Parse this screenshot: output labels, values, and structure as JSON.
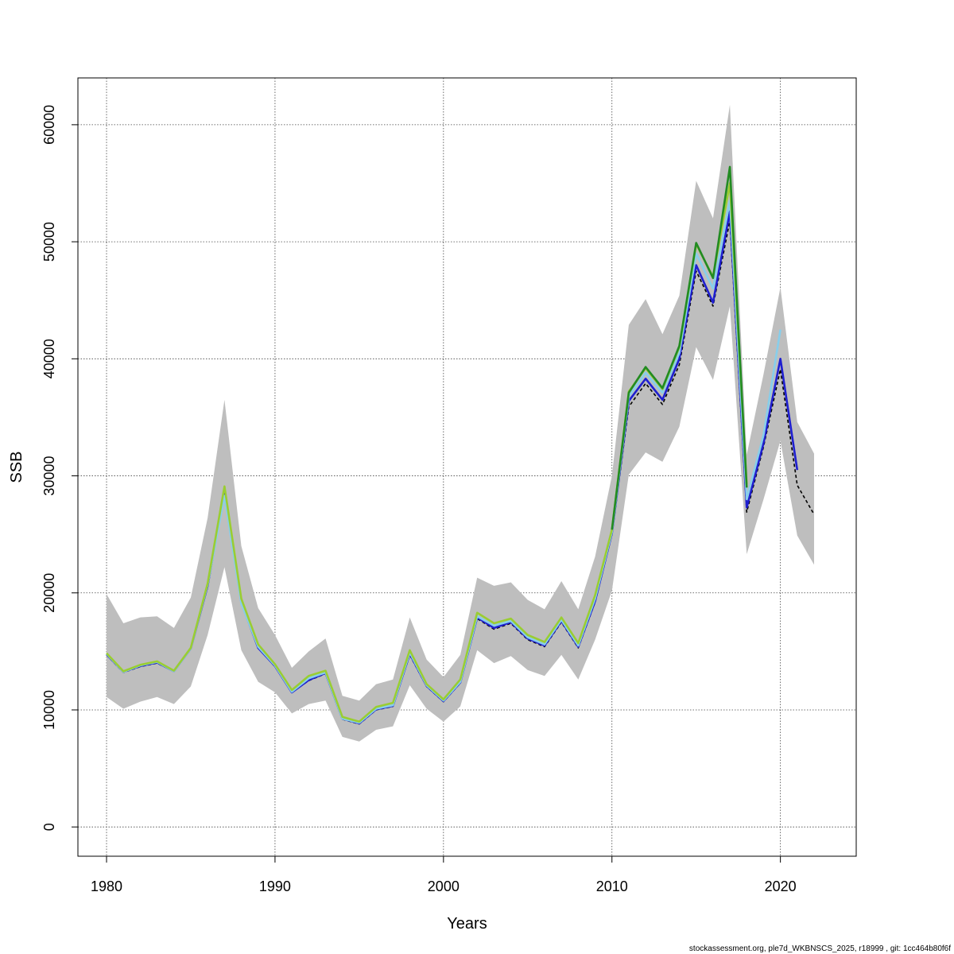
{
  "chart_data": {
    "type": "line",
    "title": "",
    "xlabel": "Years",
    "ylabel": "SSB",
    "xlim": [
      1978.3,
      2024.5
    ],
    "ylim": [
      -2500,
      64000
    ],
    "x_ticks": [
      1980,
      1990,
      2000,
      2010,
      2020
    ],
    "y_ticks": [
      0,
      10000,
      20000,
      30000,
      40000,
      50000,
      60000
    ],
    "x_tick_labels": [
      "1980",
      "1990",
      "2000",
      "2010",
      "2020"
    ],
    "y_tick_labels": [
      "0",
      "10000",
      "20000",
      "30000",
      "40000",
      "50000",
      "60000"
    ],
    "grid": true,
    "legend": "none",
    "confidence_band": {
      "color": "#bebebe",
      "x": [
        1980,
        1981,
        1982,
        1983,
        1984,
        1985,
        1986,
        1987,
        1988,
        1989,
        1990,
        1991,
        1992,
        1993,
        1994,
        1995,
        1996,
        1997,
        1998,
        1999,
        2000,
        2001,
        2002,
        2003,
        2004,
        2005,
        2006,
        2007,
        2008,
        2009,
        2010,
        2011,
        2012,
        2013,
        2014,
        2015,
        2016,
        2017,
        2018,
        2019,
        2020,
        2021,
        2022
      ],
      "lower": [
        11100,
        10100,
        10700,
        11100,
        10500,
        12000,
        16400,
        22200,
        15100,
        12400,
        11500,
        9700,
        10500,
        10800,
        7700,
        7300,
        8300,
        8600,
        12100,
        10100,
        9000,
        10300,
        15100,
        14000,
        14600,
        13400,
        12900,
        14700,
        12600,
        16000,
        20200,
        30100,
        32000,
        31200,
        34200,
        41000,
        38200,
        44500,
        23300,
        28000,
        33000,
        24900,
        22400
      ],
      "upper": [
        19900,
        17400,
        17900,
        18000,
        17000,
        19600,
        26400,
        36500,
        24000,
        18700,
        16400,
        13600,
        15000,
        16100,
        11200,
        10800,
        12200,
        12600,
        17900,
        14300,
        12800,
        14700,
        21300,
        20600,
        20900,
        19400,
        18600,
        21000,
        18600,
        23100,
        30000,
        42900,
        45100,
        42100,
        45400,
        55200,
        52000,
        61700,
        31800,
        38700,
        46100,
        34600,
        31900
      ]
    },
    "series": [
      {
        "color": "#000000",
        "dashed": true,
        "x": [
          1980,
          1981,
          1982,
          1983,
          1984,
          1985,
          1986,
          1987,
          1988,
          1989,
          1990,
          1991,
          1992,
          1993,
          1994,
          1995,
          1996,
          1997,
          1998,
          1999,
          2000,
          2001,
          2002,
          2003,
          2004,
          2005,
          2006,
          2007,
          2008,
          2009,
          2010,
          2011,
          2012,
          2013,
          2014,
          2015,
          2016,
          2017,
          2018,
          2019,
          2020,
          2021,
          2022
        ],
        "values": [
          14700,
          13200,
          13700,
          14000,
          13300,
          15200,
          20500,
          28500,
          19200,
          15300,
          13700,
          11500,
          12500,
          13100,
          9200,
          8800,
          10000,
          10300,
          14700,
          12000,
          10700,
          12300,
          17800,
          16900,
          17400,
          16000,
          15400,
          17500,
          15300,
          19200,
          25000,
          35900,
          37900,
          36100,
          39500,
          47500,
          44500,
          51800,
          26900,
          32500,
          39100,
          29200,
          26700
        ]
      },
      {
        "color": "#1f1fd0",
        "dashed": false,
        "x": [
          1980,
          1981,
          1982,
          1983,
          1984,
          1985,
          1986,
          1987,
          1988,
          1989,
          1990,
          1991,
          1992,
          1993,
          1994,
          1995,
          1996,
          1997,
          1998,
          1999,
          2000,
          2001,
          2002,
          2003,
          2004,
          2005,
          2006,
          2007,
          2008,
          2009,
          2010,
          2011,
          2012,
          2013,
          2014,
          2015,
          2016,
          2017,
          2018,
          2019,
          2020,
          2021
        ],
        "values": [
          14750,
          13250,
          13750,
          14050,
          13300,
          15250,
          20600,
          28700,
          19200,
          15300,
          13750,
          11500,
          12550,
          13150,
          9250,
          8850,
          10050,
          10350,
          14800,
          12050,
          10750,
          12350,
          17900,
          17000,
          17500,
          16100,
          15500,
          17600,
          15400,
          19300,
          25100,
          36400,
          38300,
          36500,
          40000,
          48000,
          44800,
          52600,
          27300,
          32800,
          40000,
          30500
        ]
      },
      {
        "color": "#87ceeb",
        "dashed": false,
        "x": [
          1980,
          1981,
          1982,
          1983,
          1984,
          1985,
          1986,
          1987,
          1988,
          1989,
          1990,
          1991,
          1992,
          1993,
          1994,
          1995,
          1996,
          1997,
          1998,
          1999,
          2000,
          2001,
          2002,
          2003,
          2004,
          2005,
          2006,
          2007,
          2008,
          2009,
          2010,
          2011,
          2012,
          2013,
          2014,
          2015,
          2016,
          2017,
          2018,
          2019,
          2020
        ],
        "values": [
          14800,
          13250,
          13800,
          14100,
          13300,
          15250,
          20700,
          28300,
          19100,
          15400,
          13800,
          11550,
          12700,
          13200,
          9250,
          8900,
          10100,
          10400,
          14900,
          12100,
          10800,
          12400,
          18000,
          17200,
          17600,
          16200,
          15600,
          17700,
          15500,
          19500,
          25200,
          36800,
          38800,
          37100,
          40500,
          49000,
          46000,
          53500,
          28000,
          33500,
          42500
        ]
      },
      {
        "color": "#9acd32",
        "dashed": false,
        "x": [
          1980,
          1981,
          1982,
          1983,
          1984,
          1985,
          1986,
          1987,
          1988,
          1989,
          1990,
          1991,
          1992,
          1993,
          1994,
          1995,
          1996,
          1997,
          1998,
          1999,
          2000,
          2001,
          2002,
          2003,
          2004,
          2005,
          2006,
          2007,
          2008,
          2009,
          2010,
          2011,
          2012,
          2013,
          2014,
          2015,
          2016,
          2017,
          2018
        ],
        "values": [
          14850,
          13300,
          13850,
          14150,
          13350,
          15300,
          20800,
          29100,
          19500,
          15600,
          13900,
          11700,
          12900,
          13350,
          9400,
          9000,
          10250,
          10600,
          15100,
          12200,
          10900,
          12600,
          18300,
          17400,
          17800,
          16400,
          15800,
          17900,
          15700,
          19800,
          25400,
          37200,
          39200,
          37400,
          41000,
          49800,
          47000,
          55000,
          29300
        ]
      },
      {
        "color": "#228b22",
        "dashed": false,
        "x": [
          2010,
          2011,
          2012,
          2013,
          2014,
          2015,
          2016,
          2017,
          2018
        ],
        "values": [
          25400,
          37100,
          39300,
          37500,
          41100,
          49900,
          46900,
          56400,
          29000
        ]
      }
    ]
  },
  "footer": "stockassessment.org, ple7d_WKBNSCS_2025, r18999 , git: 1cc464b80f6f"
}
